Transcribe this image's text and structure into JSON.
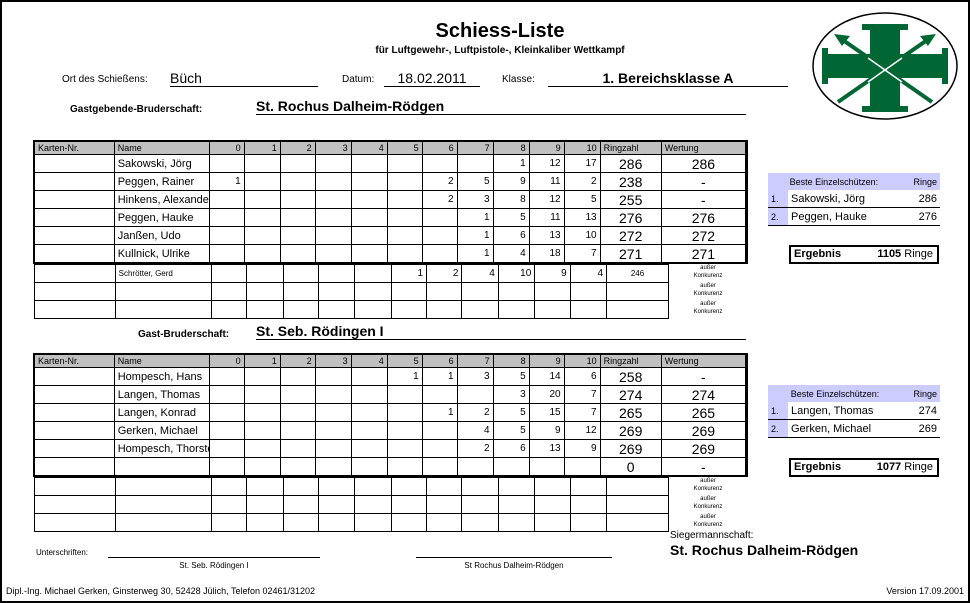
{
  "title": "Schiess-Liste",
  "subtitle": "für Luftgewehr-, Luftpistole-, Kleinkaliber Wettkampf",
  "ort_label": "Ort des Schießens:",
  "ort": "Büch",
  "datum_label": "Datum:",
  "datum": "18.02.2011",
  "klasse_label": "Klasse:",
  "klasse": "1. Bereichsklasse A",
  "logo_colors": {
    "green": "#006633"
  },
  "headers": [
    "Karten-Nr.",
    "Name",
    "0",
    "1",
    "2",
    "3",
    "4",
    "5",
    "6",
    "7",
    "8",
    "9",
    "10",
    "Ringzahl",
    "Wertung"
  ],
  "ausser": [
    "außer",
    "Konkurenz"
  ],
  "teams": [
    {
      "label": "Gastgebende-Bruderschaft:",
      "name": "St. Rochus Dalheim-Rödgen",
      "rows": [
        [
          "",
          "Sakowski, Jörg",
          "",
          "",
          "",
          "",
          "",
          "",
          "",
          "",
          "1",
          "12",
          "17",
          "286",
          "286"
        ],
        [
          "",
          "Peggen, Rainer",
          "1",
          "",
          "",
          "",
          "",
          "",
          "2",
          "5",
          "9",
          "11",
          "2",
          "238",
          "-"
        ],
        [
          "",
          "Hinkens, Alexander",
          "",
          "",
          "",
          "",
          "",
          "",
          "2",
          "3",
          "8",
          "12",
          "5",
          "255",
          "-"
        ],
        [
          "",
          "Peggen, Hauke",
          "",
          "",
          "",
          "",
          "",
          "",
          "",
          "1",
          "5",
          "11",
          "13",
          "276",
          "276"
        ],
        [
          "",
          "Janßen, Udo",
          "",
          "",
          "",
          "",
          "",
          "",
          "",
          "1",
          "6",
          "13",
          "10",
          "272",
          "272"
        ],
        [
          "",
          "Kullnick, Ulrike",
          "",
          "",
          "",
          "",
          "",
          "",
          "",
          "1",
          "4",
          "18",
          "7",
          "271",
          "271"
        ]
      ],
      "extra": [
        [
          "",
          "Schrötter, Gerd",
          "",
          "",
          "",
          "",
          "",
          "1",
          "2",
          "4",
          "10",
          "9",
          "4",
          "246"
        ],
        [
          "",
          "",
          "",
          "",
          "",
          "",
          "",
          "",
          "",
          "",
          "",
          "",
          "",
          "",
          ""
        ],
        [
          "",
          "",
          "",
          "",
          "",
          "",
          "",
          "",
          "",
          "",
          "",
          "",
          "",
          "",
          ""
        ]
      ],
      "best_header": "Beste Einzelschützen:",
      "best_ringe": "Ringe",
      "best": [
        {
          "rank": "1.",
          "name": "Sakowski, Jörg",
          "ringe": "286"
        },
        {
          "rank": "2.",
          "name": "Peggen, Hauke",
          "ringe": "276"
        }
      ],
      "ergebnis_label": "Ergebnis",
      "ergebnis": "1105",
      "ergebnis_unit": "Ringe"
    },
    {
      "label": "Gast-Bruderschaft:",
      "name": "St. Seb. Rödingen I",
      "rows": [
        [
          "",
          "Hompesch, Hans",
          "",
          "",
          "",
          "",
          "",
          "1",
          "1",
          "3",
          "5",
          "14",
          "6",
          "258",
          "-"
        ],
        [
          "",
          "Langen, Thomas",
          "",
          "",
          "",
          "",
          "",
          "",
          "",
          "",
          "3",
          "20",
          "7",
          "274",
          "274"
        ],
        [
          "",
          "Langen, Konrad",
          "",
          "",
          "",
          "",
          "",
          "",
          "1",
          "2",
          "5",
          "15",
          "7",
          "265",
          "265"
        ],
        [
          "",
          "Gerken, Michael",
          "",
          "",
          "",
          "",
          "",
          "",
          "",
          "4",
          "5",
          "9",
          "12",
          "269",
          "269"
        ],
        [
          "",
          "Hompesch, Thorsten",
          "",
          "",
          "",
          "",
          "",
          "",
          "",
          "2",
          "6",
          "13",
          "9",
          "269",
          "269"
        ],
        [
          "",
          "",
          "",
          "",
          "",
          "",
          "",
          "",
          "",
          "",
          "",
          "",
          "",
          "0",
          "-"
        ]
      ],
      "extra": [
        [
          "",
          "",
          "",
          "",
          "",
          "",
          "",
          "",
          "",
          "",
          "",
          "",
          "",
          "",
          ""
        ],
        [
          "",
          "",
          "",
          "",
          "",
          "",
          "",
          "",
          "",
          "",
          "",
          "",
          "",
          "",
          ""
        ],
        [
          "",
          "",
          "",
          "",
          "",
          "",
          "",
          "",
          "",
          "",
          "",
          "",
          "",
          "",
          ""
        ]
      ],
      "best_header": "Beste Einzelschützen:",
      "best_ringe": "Ringe",
      "best": [
        {
          "rank": "1.",
          "name": "Langen, Thomas",
          "ringe": "274"
        },
        {
          "rank": "2.",
          "name": "Gerken, Michael",
          "ringe": "269"
        }
      ],
      "ergebnis_label": "Ergebnis",
      "ergebnis": "1077",
      "ergebnis_unit": "Ringe"
    }
  ],
  "sieger_label": "Siegermannschaft:",
  "sieger": "St. Rochus Dalheim-Rödgen",
  "unterschriften": "Unterschriften:",
  "sig1": "St. Seb. Rödingen I",
  "sig2": "St Rochus Dalheim-Rödgen",
  "footer": "Dipl.-Ing. Michael Gerken, Ginsterweg 30, 52428 Jülich, Telefon 02461/31202",
  "version": "Version 17.09.2001"
}
